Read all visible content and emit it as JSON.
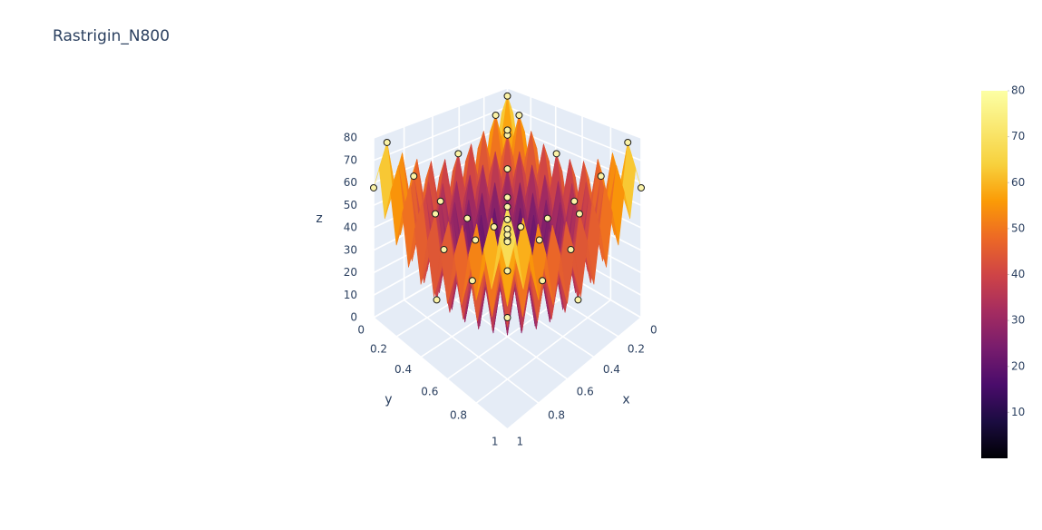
{
  "chart_data": {
    "type": "surface",
    "title": "Rastrigin_N800",
    "xaxis_title": "x",
    "yaxis_title": "y",
    "zaxis_title": "z",
    "x": [
      0,
      0.05,
      0.1,
      0.15,
      0.2,
      0.25,
      0.3,
      0.35,
      0.4,
      0.45,
      0.5,
      0.55,
      0.6,
      0.65,
      0.7,
      0.75,
      0.8,
      0.85,
      0.9,
      0.95,
      1
    ],
    "y": [
      0,
      0.05,
      0.1,
      0.15,
      0.2,
      0.25,
      0.3,
      0.35,
      0.4,
      0.45,
      0.5,
      0.55,
      0.6,
      0.65,
      0.7,
      0.75,
      0.8,
      0.85,
      0.9,
      0.95,
      1
    ],
    "z": [
      [
        57.8,
        67.9,
        47.4,
        60.4,
        39.3,
        54.8,
        33.5,
        51.0,
        30.1,
        49.1,
        28.9,
        49.1,
        30.1,
        51.0,
        33.5,
        54.8,
        39.3,
        60.4,
        47.4,
        67.9,
        57.8
      ],
      [
        67.9,
        78.0,
        57.5,
        70.5,
        49.4,
        64.9,
        43.6,
        61.1,
        40.2,
        59.2,
        39.0,
        59.2,
        40.2,
        61.1,
        43.6,
        64.9,
        49.4,
        70.5,
        57.5,
        78.0,
        67.9
      ],
      [
        47.4,
        57.5,
        37.0,
        50.0,
        28.9,
        44.4,
        23.1,
        40.6,
        19.7,
        38.7,
        18.5,
        38.7,
        19.7,
        40.6,
        23.1,
        44.4,
        28.9,
        50.0,
        37.0,
        57.5,
        47.4
      ],
      [
        60.4,
        70.5,
        50.0,
        63.0,
        41.9,
        57.4,
        36.1,
        53.6,
        32.7,
        51.7,
        31.5,
        51.7,
        32.7,
        53.6,
        36.1,
        57.4,
        41.9,
        63.0,
        50.0,
        70.5,
        60.4
      ],
      [
        39.3,
        49.4,
        28.9,
        41.9,
        20.8,
        36.3,
        15.0,
        32.5,
        11.6,
        30.6,
        10.4,
        30.6,
        11.6,
        32.5,
        15.0,
        36.3,
        20.8,
        41.9,
        28.9,
        49.4,
        39.3
      ],
      [
        54.8,
        64.9,
        44.4,
        57.4,
        36.3,
        51.8,
        30.5,
        48.0,
        27.1,
        46.1,
        25.9,
        46.1,
        27.1,
        48.0,
        30.5,
        51.8,
        36.3,
        57.4,
        44.4,
        64.9,
        54.8
      ],
      [
        33.5,
        43.6,
        23.1,
        36.1,
        15.0,
        30.5,
        9.2,
        26.7,
        5.8,
        24.8,
        4.6,
        24.8,
        5.8,
        26.7,
        9.2,
        30.5,
        15.0,
        36.1,
        23.1,
        43.6,
        33.5
      ],
      [
        51.0,
        61.1,
        40.6,
        53.6,
        32.5,
        48.0,
        26.7,
        44.2,
        23.3,
        42.3,
        22.1,
        42.3,
        23.3,
        44.2,
        26.7,
        48.0,
        32.5,
        53.6,
        40.6,
        61.1,
        51.0
      ],
      [
        30.1,
        40.2,
        19.7,
        32.7,
        11.6,
        27.1,
        5.8,
        23.3,
        2.4,
        21.4,
        1.2,
        21.4,
        2.4,
        23.3,
        5.8,
        27.1,
        11.6,
        32.7,
        19.7,
        40.2,
        30.1
      ],
      [
        49.1,
        59.2,
        38.7,
        51.7,
        30.6,
        46.1,
        24.8,
        42.3,
        21.4,
        40.4,
        20.2,
        40.4,
        21.4,
        42.3,
        24.8,
        46.1,
        30.6,
        51.7,
        38.7,
        59.2,
        49.1
      ],
      [
        28.9,
        39.0,
        18.5,
        31.5,
        10.4,
        25.9,
        4.6,
        22.1,
        1.2,
        20.2,
        0,
        20.2,
        1.2,
        22.1,
        4.6,
        25.9,
        10.4,
        31.5,
        18.5,
        39.0,
        28.9
      ],
      [
        49.1,
        59.2,
        38.7,
        51.7,
        30.6,
        46.1,
        24.8,
        42.3,
        21.4,
        40.4,
        20.2,
        40.4,
        21.4,
        42.3,
        24.8,
        46.1,
        30.6,
        51.7,
        38.7,
        59.2,
        49.1
      ],
      [
        30.1,
        40.2,
        19.7,
        32.7,
        11.6,
        27.1,
        5.8,
        23.3,
        2.4,
        21.4,
        1.2,
        21.4,
        2.4,
        23.3,
        5.8,
        27.1,
        11.6,
        32.7,
        19.7,
        40.2,
        30.1
      ],
      [
        51.0,
        61.1,
        40.6,
        53.6,
        32.5,
        48.0,
        26.7,
        44.2,
        23.3,
        42.3,
        22.1,
        42.3,
        23.3,
        44.2,
        26.7,
        48.0,
        32.5,
        53.6,
        40.6,
        61.1,
        51.0
      ],
      [
        33.5,
        43.6,
        23.1,
        36.1,
        15.0,
        30.5,
        9.2,
        26.7,
        5.8,
        24.8,
        4.6,
        24.8,
        5.8,
        26.7,
        9.2,
        30.5,
        15.0,
        36.1,
        23.1,
        43.6,
        33.5
      ],
      [
        54.8,
        64.9,
        44.4,
        57.4,
        36.3,
        51.8,
        30.5,
        48.0,
        27.1,
        46.1,
        25.9,
        46.1,
        27.1,
        48.0,
        30.5,
        51.8,
        36.3,
        57.4,
        44.4,
        64.9,
        54.8
      ],
      [
        39.3,
        49.4,
        28.9,
        41.9,
        20.8,
        36.3,
        15.0,
        32.5,
        11.6,
        30.6,
        10.4,
        30.6,
        11.6,
        32.5,
        15.0,
        36.3,
        20.8,
        41.9,
        28.9,
        49.4,
        39.3
      ],
      [
        60.4,
        70.5,
        50.0,
        63.0,
        41.9,
        57.4,
        36.1,
        53.6,
        32.7,
        51.7,
        31.5,
        51.7,
        32.7,
        53.6,
        36.1,
        57.4,
        41.9,
        63.0,
        50.0,
        70.5,
        60.4
      ],
      [
        47.4,
        57.5,
        37.0,
        50.0,
        28.9,
        44.4,
        23.1,
        40.6,
        19.7,
        38.7,
        18.5,
        38.7,
        19.7,
        40.6,
        23.1,
        44.4,
        28.9,
        50.0,
        37.0,
        57.5,
        47.4
      ],
      [
        67.9,
        78.0,
        57.5,
        70.5,
        49.4,
        64.9,
        43.6,
        61.1,
        40.2,
        59.2,
        39.0,
        59.2,
        40.2,
        61.1,
        43.6,
        64.9,
        49.4,
        70.5,
        57.5,
        78.0,
        67.9
      ],
      [
        57.8,
        67.9,
        47.4,
        60.4,
        39.3,
        54.8,
        33.5,
        51.0,
        30.1,
        49.1,
        28.9,
        49.1,
        30.1,
        51.0,
        33.5,
        54.8,
        39.3,
        60.4,
        47.4,
        67.9,
        57.8
      ]
    ],
    "xlim": [
      0,
      1
    ],
    "ylim": [
      0,
      1
    ],
    "zlim": [
      0,
      80
    ],
    "xticks": [
      0,
      0.2,
      0.4,
      0.6,
      0.8,
      1
    ],
    "yticks": [
      0,
      0.2,
      0.4,
      0.6,
      0.8,
      1
    ],
    "zticks": [
      0,
      10,
      20,
      30,
      40,
      50,
      60,
      70,
      80
    ],
    "colorscale": [
      [
        0,
        "#000004"
      ],
      [
        0.1,
        "#1b0c41"
      ],
      [
        0.2,
        "#4a0c6b"
      ],
      [
        0.3,
        "#781c6d"
      ],
      [
        0.4,
        "#a52c60"
      ],
      [
        0.5,
        "#cf4446"
      ],
      [
        0.6,
        "#ed6925"
      ],
      [
        0.7,
        "#fb9b06"
      ],
      [
        0.8,
        "#f7d13d"
      ],
      [
        1,
        "#fcffa4"
      ]
    ],
    "colorbar": {
      "lim": [
        0,
        80
      ],
      "ticks": [
        10,
        20,
        30,
        40,
        50,
        60,
        70,
        80
      ]
    },
    "points": {
      "color": "#fbf3a6",
      "line_color": "#1a1a1a",
      "x": [
        0.05,
        0.15,
        0.05,
        0.15,
        0.95,
        0.05,
        0.95,
        0.25,
        0.75,
        0.25,
        0.75,
        0.35,
        0.65,
        0.35,
        0.65,
        0.45,
        0.55,
        0.45,
        0.55,
        0.85,
        0.15,
        0.85,
        0.45,
        0.05,
        0.45,
        0.95,
        0.5,
        0.25,
        0.75,
        0.5,
        0.6,
        0.1,
        0.9,
        0.4,
        0.5,
        0,
        1,
        1,
        0
      ],
      "y": [
        0.05,
        0.05,
        0.15,
        0.15,
        0.05,
        0.95,
        0.95,
        0.25,
        0.25,
        0.75,
        0.75,
        0.35,
        0.35,
        0.65,
        0.65,
        0.45,
        0.45,
        0.55,
        0.55,
        0.15,
        0.85,
        0.85,
        0.05,
        0.45,
        0.95,
        0.45,
        0.25,
        0.5,
        0.5,
        0.75,
        0.1,
        0.6,
        0.4,
        0.9,
        0.5,
        0,
        1,
        0,
        1
      ],
      "z": [
        78.0,
        70.5,
        70.5,
        63.0,
        78.0,
        78.0,
        78.0,
        51.8,
        51.8,
        51.8,
        51.8,
        44.2,
        44.2,
        44.2,
        44.2,
        40.4,
        40.4,
        40.4,
        40.4,
        63.0,
        63.0,
        63.0,
        59.2,
        59.2,
        59.2,
        59.2,
        25.9,
        25.9,
        25.9,
        25.9,
        19.7,
        19.7,
        19.7,
        19.7,
        0,
        57.8,
        57.8,
        57.8,
        57.8
      ]
    }
  }
}
